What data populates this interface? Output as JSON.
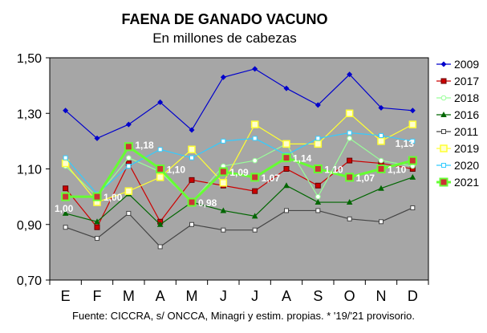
{
  "chart_data": {
    "type": "line",
    "title": "FAENA DE GANADO VACUNO",
    "subtitle": "En millones de cabezas",
    "source": "Fuente: CICCRA, s/ ONCCA, Minagri y estim. propias. * '19/'21 provisorio.",
    "categories": [
      "E",
      "F",
      "M",
      "A",
      "M",
      "J",
      "J",
      "A",
      "S",
      "O",
      "N",
      "D"
    ],
    "ylim": [
      0.7,
      1.5
    ],
    "yticks": [
      "0,70",
      "0,90",
      "1,10",
      "1,30",
      "1,50"
    ],
    "grid": false,
    "legend_position": "right",
    "series": [
      {
        "name": "2009",
        "color": "#0000cc",
        "marker": "diamond",
        "values": [
          1.31,
          1.21,
          1.26,
          1.34,
          1.24,
          1.43,
          1.46,
          1.39,
          1.33,
          1.44,
          1.32,
          1.31
        ]
      },
      {
        "name": "2017",
        "color": "#cc0000",
        "marker": "square",
        "values": [
          1.03,
          0.89,
          1.12,
          0.91,
          1.06,
          1.04,
          1.02,
          1.1,
          1.04,
          1.13,
          1.12,
          1.1
        ]
      },
      {
        "name": "2018",
        "color": "#99ff99",
        "marker": "circle-open",
        "values": [
          1.11,
          1.0,
          1.14,
          1.09,
          0.98,
          1.11,
          1.13,
          1.19,
          1.0,
          1.21,
          1.13,
          1.11
        ]
      },
      {
        "name": "2016",
        "color": "#006600",
        "marker": "triangle",
        "values": [
          0.94,
          0.91,
          1.01,
          0.9,
          0.98,
          0.95,
          0.93,
          1.04,
          0.98,
          0.98,
          1.03,
          1.07
        ]
      },
      {
        "name": "2011",
        "color": "#444444",
        "marker": "square-open",
        "values": [
          0.89,
          0.85,
          0.94,
          0.82,
          0.9,
          0.88,
          0.88,
          0.95,
          0.95,
          0.92,
          0.91,
          0.96
        ]
      },
      {
        "name": "2019",
        "color": "#ffff33",
        "marker": "square-yellow",
        "values": [
          1.12,
          0.98,
          1.02,
          1.07,
          1.17,
          1.05,
          1.26,
          1.19,
          1.19,
          1.3,
          1.2,
          1.26
        ]
      },
      {
        "name": "2020",
        "color": "#33ccff",
        "marker": "square-open",
        "values": [
          1.14,
          1.01,
          1.11,
          1.17,
          1.14,
          1.2,
          1.21,
          1.15,
          1.21,
          1.23,
          1.22,
          1.2
        ]
      },
      {
        "name": "2021",
        "color": "#66ff33",
        "marker": "square-big",
        "values": [
          1.0,
          1.0,
          1.18,
          1.1,
          0.98,
          1.09,
          1.07,
          1.14,
          1.1,
          1.07,
          1.1,
          1.13
        ]
      }
    ],
    "data_labels": {
      "series": "2021",
      "labels": [
        "1,00",
        "1,00",
        "1,18",
        "1,10",
        "0,98",
        "1,09",
        "1,07",
        "1,14",
        "1,10",
        "1,07",
        "1,10",
        "1,13"
      ]
    }
  }
}
